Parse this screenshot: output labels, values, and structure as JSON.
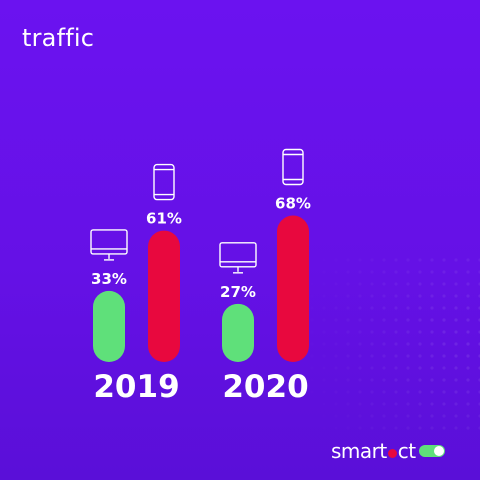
{
  "title": "traffic",
  "logo": {
    "part1": "smart",
    "part2": "ct"
  },
  "colors": {
    "background": "#6a12ee",
    "desktop": "#5fe07a",
    "mobile": "#e8083e",
    "text": "#ffffff"
  },
  "icons": {
    "desktop": "desktop-monitor-icon",
    "mobile": "smartphone-icon"
  },
  "chart_data": {
    "type": "bar",
    "categories": [
      "2019",
      "2020"
    ],
    "series": [
      {
        "key": "desktop",
        "values": [
          33,
          27
        ],
        "labels": [
          "33%",
          "27%"
        ],
        "color": "#5fe07a",
        "icon": "desktop-monitor-icon"
      },
      {
        "key": "mobile",
        "values": [
          61,
          68
        ],
        "labels": [
          "61%",
          "68%"
        ],
        "color": "#e8083e",
        "icon": "smartphone-icon"
      }
    ],
    "ylim": [
      0,
      100
    ],
    "grid": false,
    "legend": "none"
  }
}
